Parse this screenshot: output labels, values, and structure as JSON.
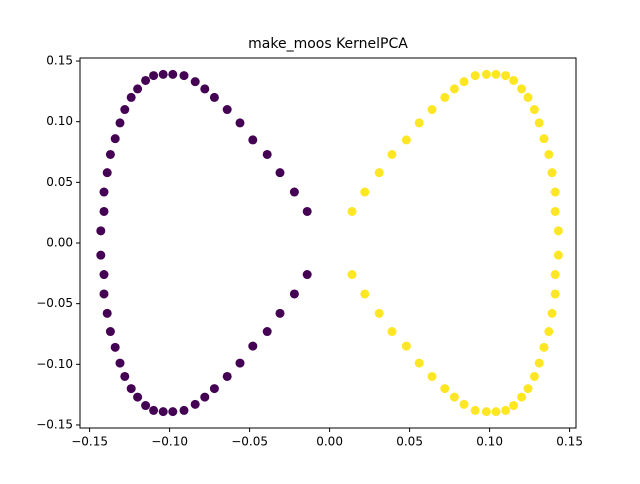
{
  "chart_data": {
    "type": "scatter",
    "title": "make_moos KernelPCA",
    "xlim": [
      -0.156,
      0.154
    ],
    "ylim": [
      -0.1525,
      0.1525
    ],
    "xticks": [
      {
        "value": -0.15,
        "label": "−0.15"
      },
      {
        "value": -0.1,
        "label": "−0.10"
      },
      {
        "value": -0.05,
        "label": "−0.05"
      },
      {
        "value": 0,
        "label": "0.00"
      },
      {
        "value": 0.05,
        "label": "0.05"
      },
      {
        "value": 0.1,
        "label": "0.10"
      },
      {
        "value": 0.15,
        "label": "0.15"
      }
    ],
    "yticks": [
      {
        "value": -0.15,
        "label": "−0.15"
      },
      {
        "value": -0.1,
        "label": "−0.10"
      },
      {
        "value": -0.05,
        "label": "−0.05"
      },
      {
        "value": 0,
        "label": "0.00"
      },
      {
        "value": 0.05,
        "label": "0.05"
      },
      {
        "value": 0.1,
        "label": "0.10"
      },
      {
        "value": 0.15,
        "label": "0.15"
      }
    ],
    "series": [
      {
        "color": "#440154",
        "x": [
          -0.014,
          -0.022,
          -0.031,
          -0.039,
          -0.048,
          -0.056,
          -0.064,
          -0.072,
          -0.078,
          -0.084,
          -0.091,
          -0.098,
          -0.104,
          -0.11,
          -0.115,
          -0.12,
          -0.124,
          -0.128,
          -0.131,
          -0.134,
          -0.137,
          -0.139,
          -0.141,
          -0.141,
          -0.143,
          -0.014,
          -0.022,
          -0.031,
          -0.039,
          -0.048,
          -0.056,
          -0.064,
          -0.072,
          -0.078,
          -0.084,
          -0.091,
          -0.098,
          -0.104,
          -0.11,
          -0.115,
          -0.12,
          -0.124,
          -0.128,
          -0.131,
          -0.134,
          -0.137,
          -0.139,
          -0.141,
          -0.141,
          -0.143
        ],
        "y": [
          0.026,
          0.042,
          0.058,
          0.073,
          0.085,
          0.099,
          0.11,
          0.12,
          0.127,
          0.133,
          0.138,
          0.139,
          0.139,
          0.138,
          0.134,
          0.127,
          0.12,
          0.11,
          0.099,
          0.086,
          0.073,
          0.058,
          0.042,
          0.026,
          0.01,
          -0.026,
          -0.042,
          -0.058,
          -0.073,
          -0.085,
          -0.099,
          -0.11,
          -0.12,
          -0.127,
          -0.133,
          -0.138,
          -0.139,
          -0.139,
          -0.138,
          -0.134,
          -0.127,
          -0.12,
          -0.11,
          -0.099,
          -0.086,
          -0.073,
          -0.058,
          -0.042,
          -0.026,
          -0.01
        ]
      },
      {
        "color": "#fde725",
        "x": [
          0.014,
          0.022,
          0.031,
          0.039,
          0.048,
          0.056,
          0.064,
          0.072,
          0.078,
          0.084,
          0.091,
          0.098,
          0.104,
          0.11,
          0.115,
          0.12,
          0.124,
          0.128,
          0.131,
          0.134,
          0.137,
          0.139,
          0.141,
          0.141,
          0.143,
          0.014,
          0.022,
          0.031,
          0.039,
          0.048,
          0.056,
          0.064,
          0.072,
          0.078,
          0.084,
          0.091,
          0.098,
          0.104,
          0.11,
          0.115,
          0.12,
          0.124,
          0.128,
          0.131,
          0.134,
          0.137,
          0.139,
          0.141,
          0.141,
          0.143
        ],
        "y": [
          0.026,
          0.042,
          0.058,
          0.073,
          0.085,
          0.099,
          0.11,
          0.12,
          0.127,
          0.133,
          0.138,
          0.139,
          0.139,
          0.138,
          0.134,
          0.127,
          0.12,
          0.11,
          0.099,
          0.086,
          0.073,
          0.058,
          0.042,
          0.026,
          0.01,
          -0.026,
          -0.042,
          -0.058,
          -0.073,
          -0.085,
          -0.099,
          -0.11,
          -0.12,
          -0.127,
          -0.133,
          -0.138,
          -0.139,
          -0.139,
          -0.138,
          -0.134,
          -0.127,
          -0.12,
          -0.11,
          -0.099,
          -0.086,
          -0.073,
          -0.058,
          -0.042,
          -0.026,
          -0.01
        ]
      }
    ]
  }
}
